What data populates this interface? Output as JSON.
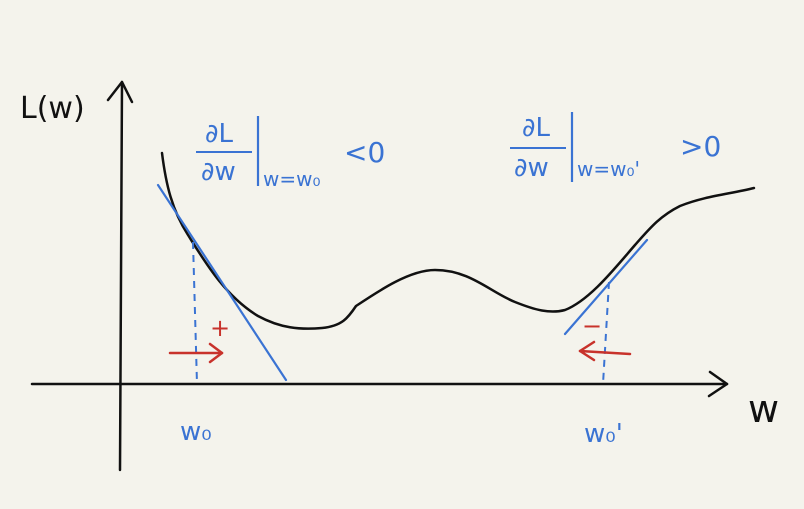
{
  "axes": {
    "y_label": "L(w)",
    "x_label": "w"
  },
  "annotations": {
    "left_derivative": {
      "numerator": "∂L",
      "denominator": "∂w",
      "evaluated_at": "w=w₀",
      "relation": "<0"
    },
    "right_derivative": {
      "numerator": "∂L",
      "denominator": "∂w",
      "evaluated_at": "w=w₀'",
      "relation": ">0"
    },
    "left_point_label": "w₀",
    "right_point_label": "w₀'",
    "left_step_sign": "+",
    "right_step_sign": "−"
  },
  "colors": {
    "background": "#f4f3ec",
    "curve": "#111111",
    "tangent": "#3a73d3",
    "arrow": "#c8322b"
  }
}
